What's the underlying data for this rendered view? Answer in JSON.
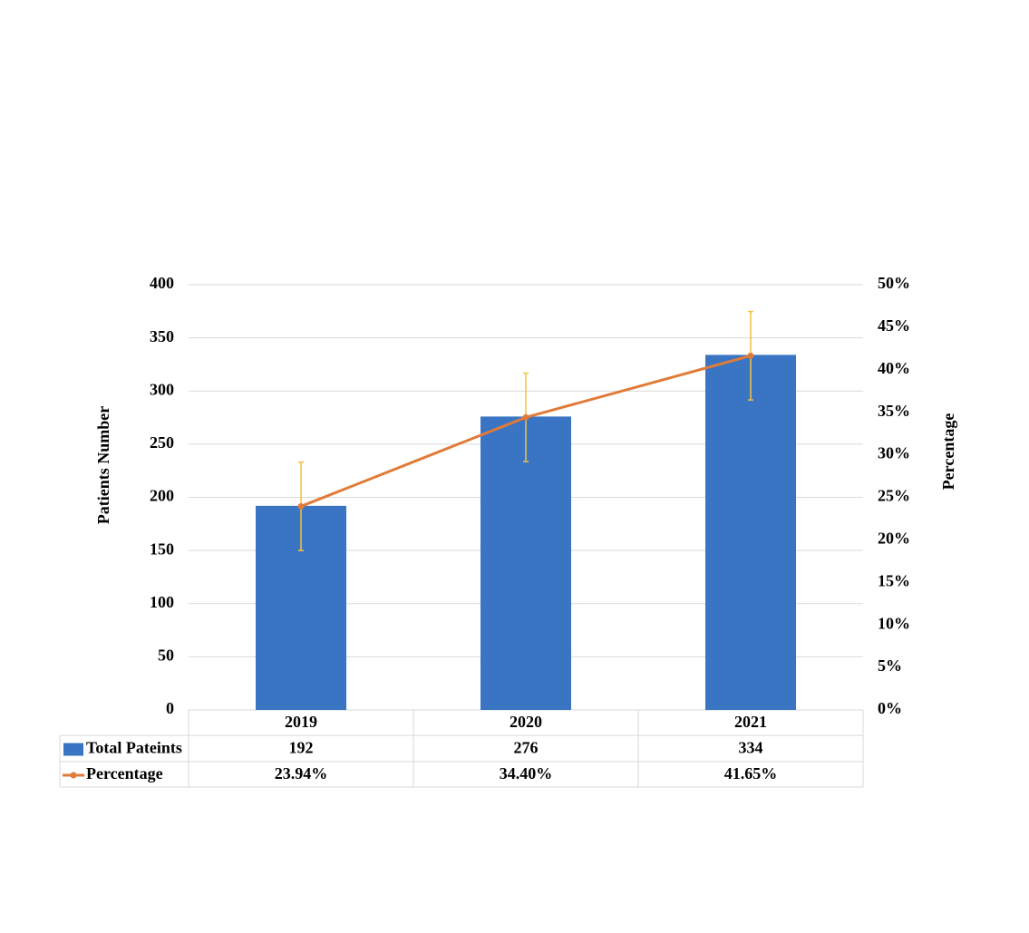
{
  "chart_data": {
    "type": "bar",
    "categories": [
      "2019",
      "2020",
      "2021"
    ],
    "y_label": "Patients Number",
    "y2_label": "Percentage",
    "series": [
      {
        "name": "Total Pateints",
        "type": "bar",
        "color": "#3a75c4",
        "values": [
          192,
          276,
          334
        ]
      },
      {
        "name": "Percentage",
        "type": "line",
        "axis": "y2",
        "color": "#e07b39",
        "error_color": "#f2c140",
        "values": [
          23.94,
          34.4,
          41.65
        ],
        "value_labels": [
          "23.94%",
          "34.40%",
          "41.65%"
        ],
        "errors": [
          5.2,
          5.2,
          5.2
        ]
      }
    ],
    "ylim": [
      0,
      400
    ],
    "yticks": [
      0,
      50,
      100,
      150,
      200,
      250,
      300,
      350,
      400
    ],
    "y2lim": [
      0,
      50
    ],
    "y2ticks": [
      {
        "value": 0,
        "label": "0%"
      },
      {
        "value": 5,
        "label": "5%"
      },
      {
        "value": 10,
        "label": "10%"
      },
      {
        "value": 15,
        "label": "15%"
      },
      {
        "value": 20,
        "label": "20%"
      },
      {
        "value": 25,
        "label": "25%"
      },
      {
        "value": 30,
        "label": "30%"
      },
      {
        "value": 35,
        "label": "35%"
      },
      {
        "value": 40,
        "label": "40%"
      },
      {
        "value": 45,
        "label": "45%"
      },
      {
        "value": 50,
        "label": "50%"
      }
    ],
    "grid": true
  }
}
